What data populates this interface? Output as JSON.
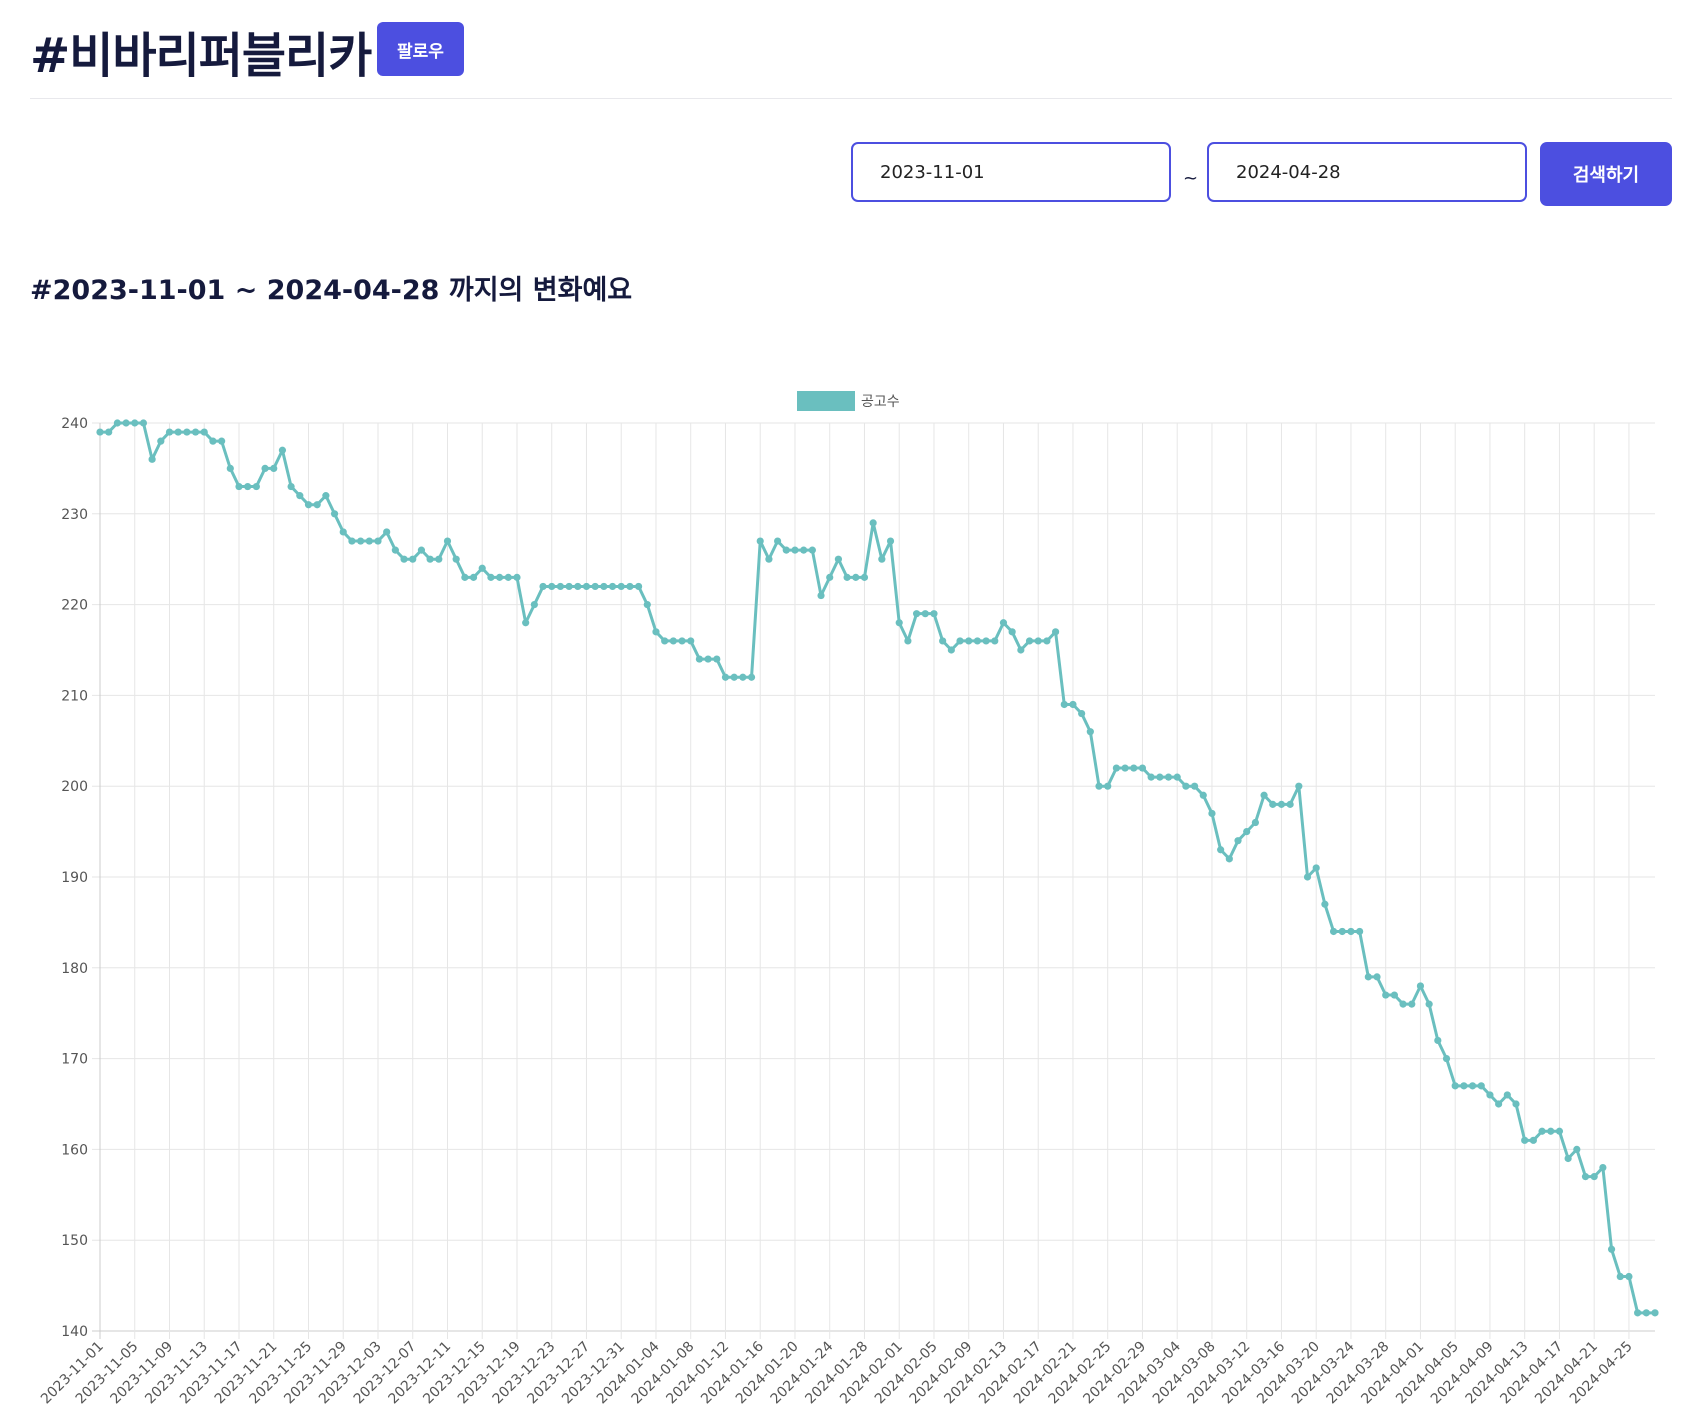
{
  "header": {
    "title": "#비바리퍼블리카",
    "follow_button": "팔로우"
  },
  "search": {
    "start_date": "2023-11-01",
    "separator": "~",
    "end_date": "2024-04-28",
    "button": "검색하기"
  },
  "heading": "#2023-11-01 ~ 2024-04-28 까지의 변화예요",
  "chart_data": {
    "type": "line",
    "categories": [
      "2023-11-01",
      null,
      null,
      null,
      "2023-11-05",
      null,
      null,
      null,
      "2023-11-09",
      null,
      null,
      null,
      "2023-11-13",
      null,
      null,
      null,
      "2023-11-17",
      null,
      null,
      null,
      "2023-11-21",
      null,
      null,
      null,
      "2023-11-25",
      null,
      null,
      null,
      "2023-11-29",
      null,
      null,
      null,
      "2023-12-03",
      null,
      null,
      null,
      "2023-12-07",
      null,
      null,
      null,
      "2023-12-11",
      null,
      null,
      null,
      "2023-12-15",
      null,
      null,
      null,
      "2023-12-19",
      null,
      null,
      null,
      "2023-12-23",
      null,
      null,
      null,
      "2023-12-27",
      null,
      null,
      null,
      "2023-12-31",
      null,
      null,
      null,
      "2024-01-04",
      null,
      null,
      null,
      "2024-01-08",
      null,
      null,
      null,
      "2024-01-12",
      null,
      null,
      null,
      "2024-01-16",
      null,
      null,
      null,
      "2024-01-20",
      null,
      null,
      null,
      "2024-01-24",
      null,
      null,
      null,
      "2024-01-28",
      null,
      null,
      null,
      "2024-02-01",
      null,
      null,
      null,
      "2024-02-05",
      null,
      null,
      null,
      "2024-02-09",
      null,
      null,
      null,
      "2024-02-13",
      null,
      null,
      null,
      "2024-02-17",
      null,
      null,
      null,
      "2024-02-21",
      null,
      null,
      null,
      "2024-02-25",
      null,
      null,
      null,
      "2024-02-29",
      null,
      null,
      null,
      "2024-03-04",
      null,
      null,
      null,
      "2024-03-08",
      null,
      null,
      null,
      "2024-03-12",
      null,
      null,
      null,
      "2024-03-16",
      null,
      null,
      null,
      "2024-03-20",
      null,
      null,
      null,
      "2024-03-24",
      null,
      null,
      null,
      "2024-03-28",
      null,
      null,
      null,
      "2024-04-01",
      null,
      null,
      null,
      "2024-04-05",
      null,
      null,
      null,
      "2024-04-09",
      null,
      null,
      null,
      "2024-04-13",
      null,
      null,
      null,
      "2024-04-17",
      null,
      null,
      null,
      "2024-04-21",
      null,
      null,
      null,
      "2024-04-25",
      null,
      null,
      null
    ],
    "series": [
      {
        "name": "공고수",
        "color": "#6abfbf",
        "values": [
          239,
          239,
          240,
          240,
          240,
          240,
          236,
          238,
          239,
          239,
          239,
          239,
          239,
          238,
          238,
          235,
          233,
          233,
          233,
          235,
          235,
          237,
          233,
          232,
          231,
          231,
          232,
          230,
          228,
          227,
          227,
          227,
          227,
          228,
          226,
          225,
          225,
          226,
          225,
          225,
          227,
          225,
          223,
          223,
          224,
          223,
          223,
          223,
          223,
          218,
          220,
          222,
          222,
          222,
          222,
          222,
          222,
          222,
          222,
          222,
          222,
          222,
          222,
          220,
          217,
          216,
          216,
          216,
          216,
          214,
          214,
          214,
          212,
          212,
          212,
          212,
          227,
          225,
          227,
          226,
          226,
          226,
          226,
          221,
          223,
          225,
          223,
          223,
          223,
          229,
          225,
          227,
          218,
          216,
          219,
          219,
          219,
          216,
          215,
          216,
          216,
          216,
          216,
          216,
          218,
          217,
          215,
          216,
          216,
          216,
          217,
          209,
          209,
          208,
          206,
          200,
          200,
          202,
          202,
          202,
          202,
          201,
          201,
          201,
          201,
          200,
          200,
          199,
          197,
          193,
          192,
          194,
          195,
          196,
          199,
          198,
          198,
          198,
          200,
          190,
          191,
          187,
          184,
          184,
          184,
          184,
          179,
          179,
          177,
          177,
          176,
          176,
          178,
          176,
          172,
          170,
          167,
          167,
          167,
          167,
          166,
          165,
          166,
          165,
          161,
          161,
          162,
          162,
          162,
          159,
          160,
          157,
          157,
          158,
          149,
          146,
          146,
          142,
          142,
          142
        ]
      }
    ],
    "ylim": [
      140,
      240
    ],
    "yticks": [
      140,
      150,
      160,
      170,
      180,
      190,
      200,
      210,
      220,
      230,
      240
    ],
    "grid": true,
    "legend": "top"
  }
}
